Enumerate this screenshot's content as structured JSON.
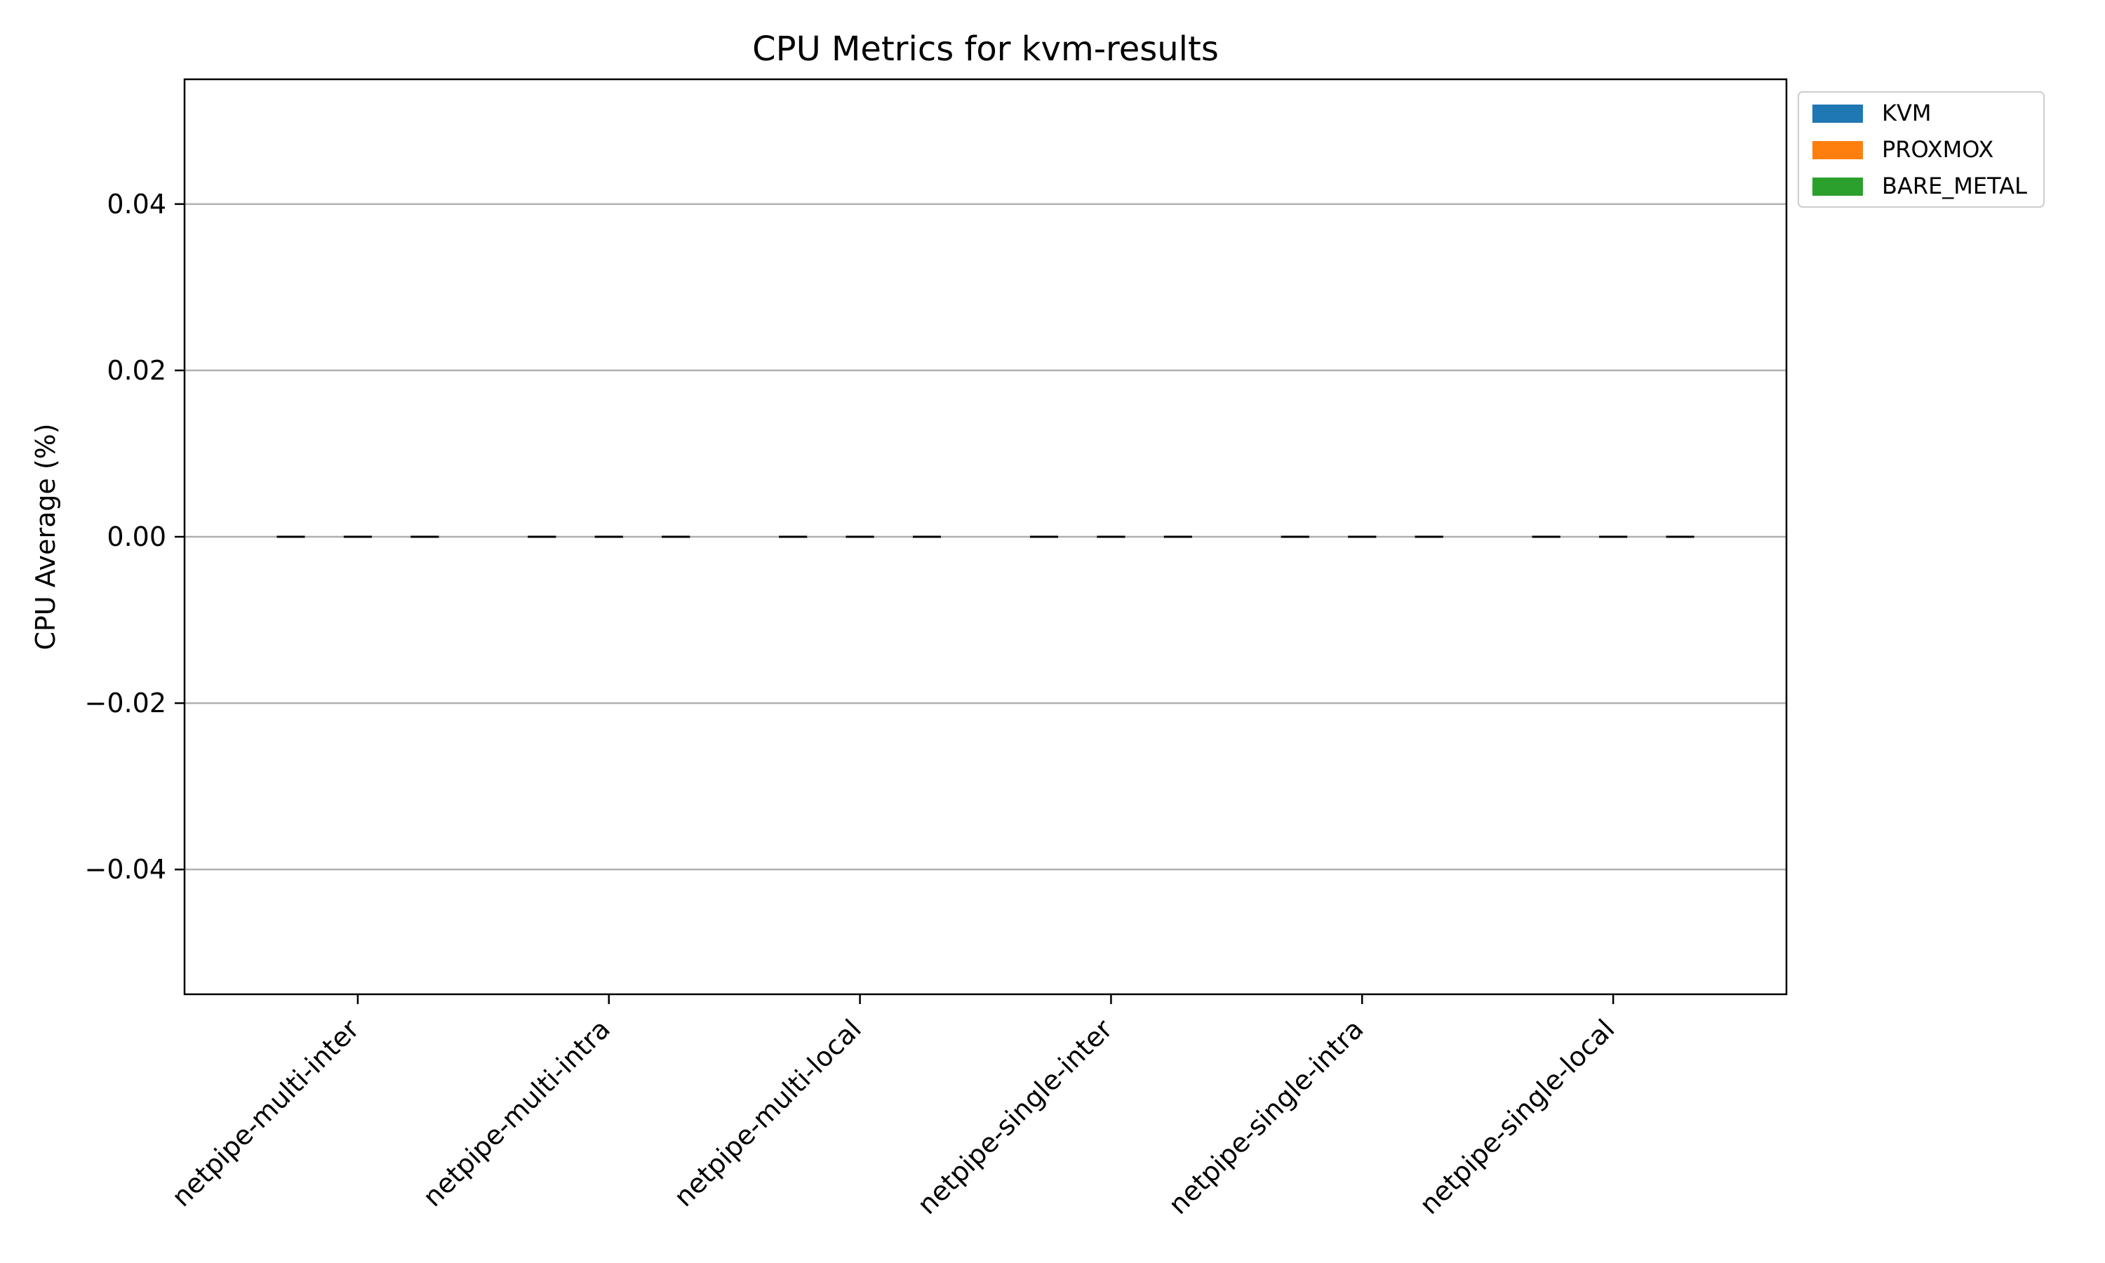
{
  "chart_data": {
    "type": "bar",
    "title": "CPU Metrics for kvm-results",
    "xlabel": "",
    "ylabel": "CPU Average (%)",
    "categories": [
      "netpipe-multi-inter",
      "netpipe-multi-intra",
      "netpipe-multi-local",
      "netpipe-single-inter",
      "netpipe-single-intra",
      "netpipe-single-local"
    ],
    "series": [
      {
        "name": "KVM",
        "color": "#1f77b4",
        "values": [
          0,
          0,
          0,
          0,
          0,
          0
        ],
        "errors": [
          0,
          0,
          0,
          0,
          0,
          0
        ]
      },
      {
        "name": "PROXMOX",
        "color": "#ff7f0e",
        "values": [
          0,
          0,
          0,
          0,
          0,
          0
        ],
        "errors": [
          0,
          0,
          0,
          0,
          0,
          0
        ]
      },
      {
        "name": "BARE_METAL",
        "color": "#2ca02c",
        "values": [
          0,
          0,
          0,
          0,
          0,
          0
        ],
        "errors": [
          0,
          0,
          0,
          0,
          0,
          0
        ]
      }
    ],
    "ylim": [
      -0.055,
      0.055
    ],
    "yticks": [
      -0.04,
      -0.02,
      0.0,
      0.02,
      0.04
    ],
    "ytick_labels": [
      "−0.04",
      "−0.02",
      "0.00",
      "0.02",
      "0.04"
    ],
    "grid": "y",
    "legend_position": "outside-top-right",
    "error_bar_color": "#000000",
    "grid_color": "#b0b0b0"
  }
}
